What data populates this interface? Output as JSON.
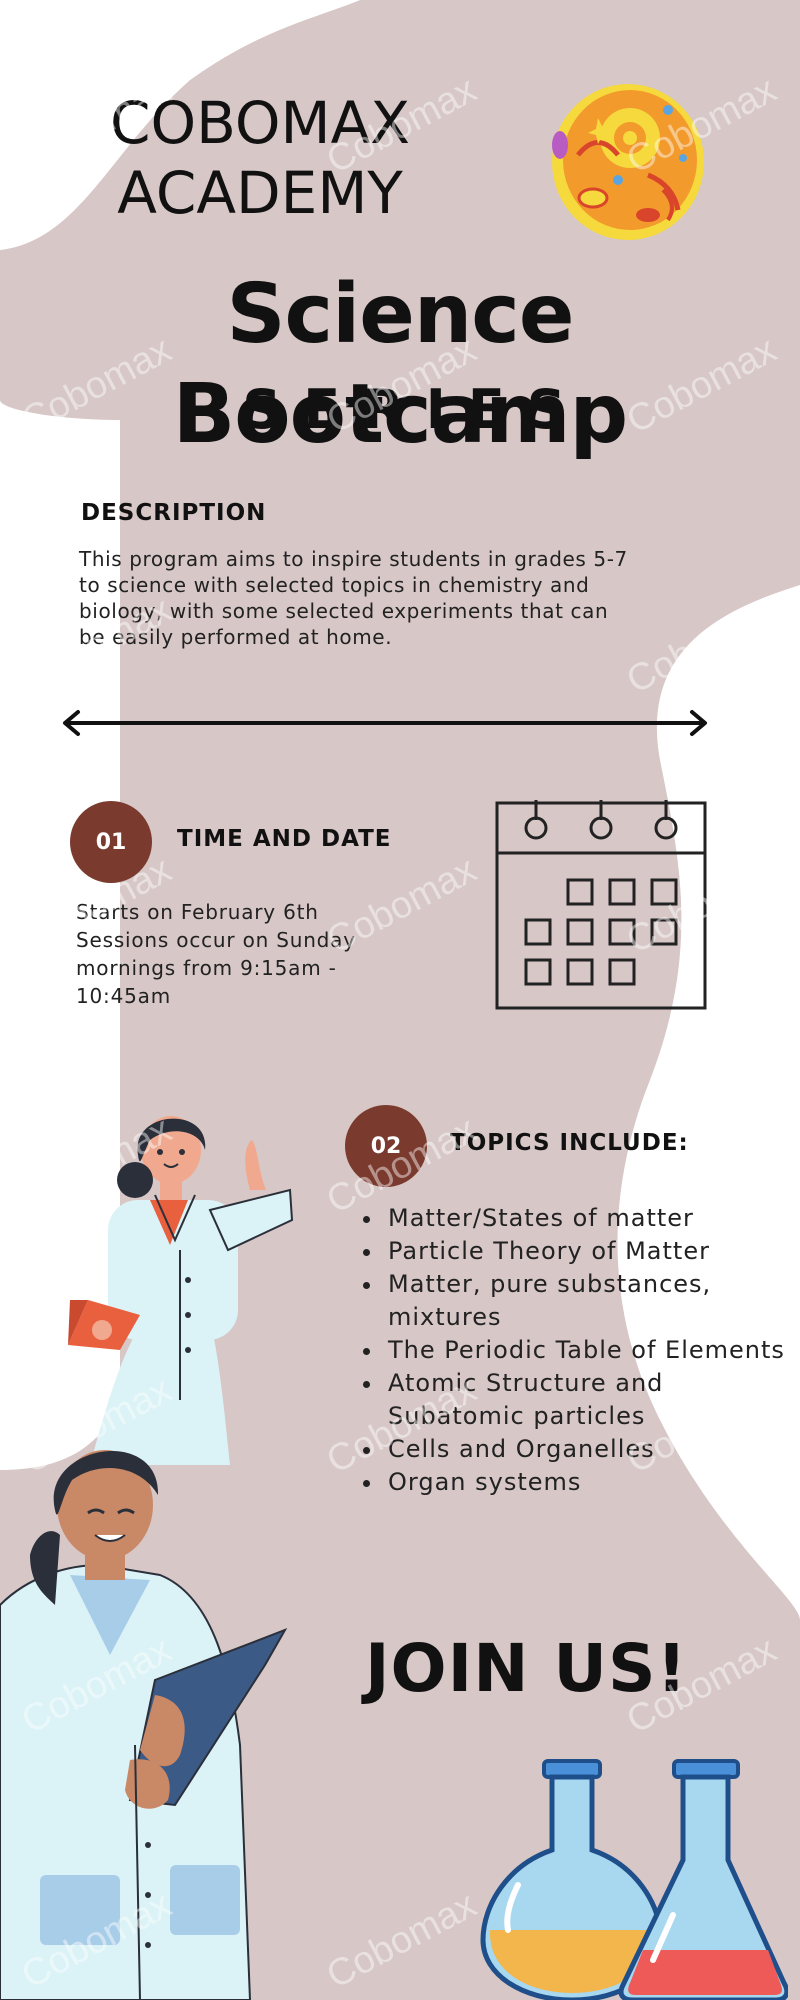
{
  "header": {
    "academy_line1": "COBOMAX",
    "academy_line2": "ACADEMY",
    "title": "Science Bootcamp",
    "subtitle": "SERIES"
  },
  "description": {
    "heading": "DESCRIPTION",
    "lines": [
      "This program aims to inspire students in grades 5-7",
      "to science with selected topics in chemistry and",
      "biology, with some selected experiments that can",
      "be easily performed at home."
    ]
  },
  "time_section": {
    "number": "01",
    "heading": "TIME AND DATE",
    "lines": [
      "Starts on February 6th",
      "Sessions occur on Sunday",
      "mornings from 9:15am -",
      "10:45am"
    ]
  },
  "topics_section": {
    "number": "02",
    "heading": "TOPICS INCLUDE:",
    "items": [
      "Matter/States of matter",
      "Particle Theory of Matter",
      "Matter, pure substances, mixtures",
      "The Periodic Table of Elements",
      "Atomic Structure and Subatomic particles",
      "Cells and Organelles",
      "Organ systems"
    ]
  },
  "cta": {
    "label": "JOIN US!"
  },
  "watermark": {
    "text": "Cobomax"
  },
  "colors": {
    "background_blob": "#d7c7c7",
    "badge": "#7b3a2e",
    "text": "#111111"
  },
  "icons": [
    "cell-icon",
    "double-arrow-icon",
    "calendar-icon",
    "scientist-woman-illustration",
    "scientist-man-illustration",
    "flask-icon"
  ]
}
